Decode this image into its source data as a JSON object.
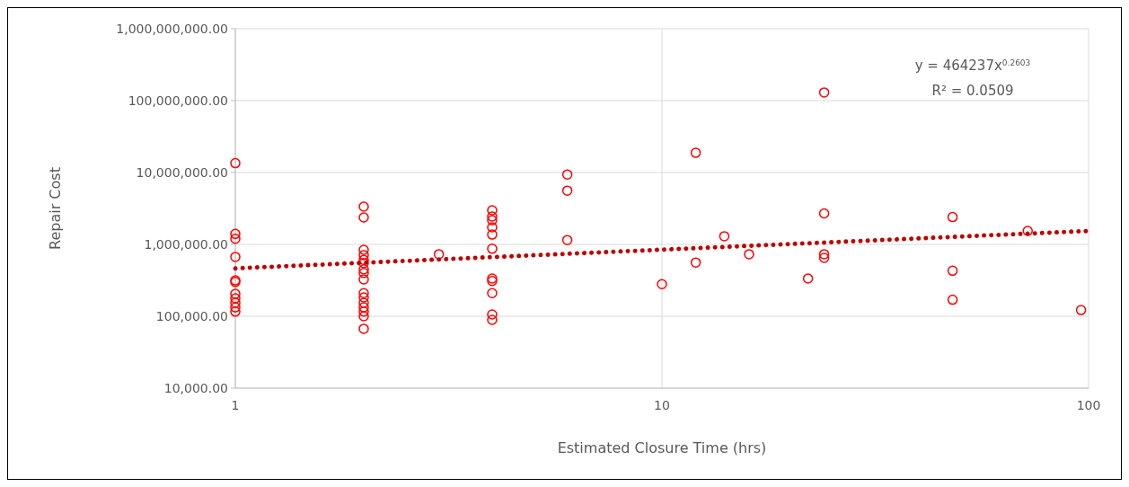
{
  "chart_data": {
    "type": "scatter",
    "xlabel": "Estimated Closure Time (hrs)",
    "ylabel": "Repair Cost",
    "log": "xy",
    "grid": true,
    "xlim": [
      1,
      100
    ],
    "xticks": [
      1,
      10,
      100
    ],
    "ylim": [
      10000,
      1000000000
    ],
    "yticks": [
      {
        "value": 10000,
        "label": "10,000.00"
      },
      {
        "value": 100000,
        "label": "100,000.00"
      },
      {
        "value": 1000000,
        "label": "1,000,000.00"
      },
      {
        "value": 10000000,
        "label": "10,000,000.00"
      },
      {
        "value": 100000000,
        "label": "100,000,000.00"
      },
      {
        "value": 1000000000,
        "label": "1,000,000,000.00"
      }
    ],
    "annotations": [
      "y = 464237x$^{0.2603}$",
      "R² = 0.0509"
    ],
    "series": [
      {
        "marker": "circle",
        "color": "#ff0000",
        "x": [
          1,
          1,
          1,
          1,
          1,
          1,
          1,
          1,
          1,
          1,
          1,
          2,
          2,
          2,
          2,
          2,
          2,
          2,
          2,
          2,
          2,
          2,
          2,
          2,
          2,
          2,
          2,
          3,
          4,
          4,
          4,
          4,
          4,
          4,
          4,
          4,
          4,
          4,
          4,
          6,
          6,
          6,
          10,
          12,
          12,
          14,
          16,
          22,
          24,
          24,
          24,
          24,
          48,
          48,
          48,
          72,
          96
        ],
        "values": [
          13500000,
          1400000,
          1200000,
          670000,
          316000,
          300000,
          205000,
          178000,
          154000,
          133000,
          116000,
          3350000,
          2370000,
          840000,
          710000,
          610000,
          550000,
          450000,
          400000,
          325000,
          210000,
          183000,
          154000,
          133000,
          116000,
          100000,
          67000,
          730000,
          2990000,
          2440000,
          2170000,
          1730000,
          1370000,
          870000,
          335000,
          310000,
          210000,
          106000,
          89000,
          9400000,
          5600000,
          1150000,
          280000,
          18800000,
          560000,
          1300000,
          730000,
          335000,
          130000000,
          2700000,
          730000,
          650000,
          2400000,
          430000,
          170000,
          1540000,
          122000
        ]
      },
      {
        "type": "line",
        "line_style": "dotted",
        "color": "#c00000",
        "x": [
          1,
          2,
          5,
          10,
          20,
          50,
          100
        ],
        "values": [
          464237,
          556000,
          705800,
          845400,
          1012500,
          1285200,
          1539500
        ]
      }
    ]
  }
}
